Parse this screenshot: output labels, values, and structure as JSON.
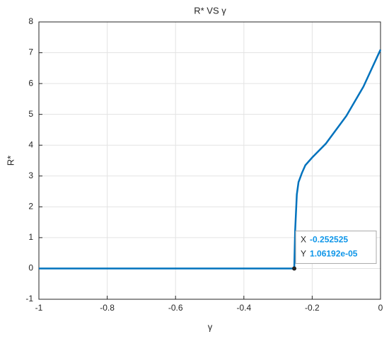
{
  "chart_data": {
    "type": "line",
    "title": "R* VS γ",
    "x_label": "γ",
    "y_label": "R*",
    "series": [
      {
        "name": "R*",
        "color": "#0072bd",
        "x": [
          -1,
          -0.2525,
          -0.25,
          -0.245,
          -0.24,
          -0.23,
          -0.22,
          -0.2,
          -0.16,
          -0.1,
          -0.05,
          0
        ],
        "values": [
          0,
          0,
          1.2,
          2.4,
          2.8,
          3.1,
          3.35,
          3.6,
          4.05,
          4.95,
          5.9,
          7.1
        ]
      }
    ],
    "xlim": [
      -1,
      0
    ],
    "xticks": [
      -1,
      -0.8,
      -0.6,
      -0.4,
      -0.2,
      0
    ],
    "ylim": [
      -1,
      8
    ],
    "yticks": [
      -1,
      0,
      1,
      2,
      3,
      4,
      5,
      6,
      7,
      8
    ],
    "grid": true,
    "datatip": {
      "x_name": "X",
      "x": -0.252525,
      "y_name": "Y",
      "y": {
        "value": 1.06192e-05,
        "label": "1.06192e-05"
      }
    }
  }
}
